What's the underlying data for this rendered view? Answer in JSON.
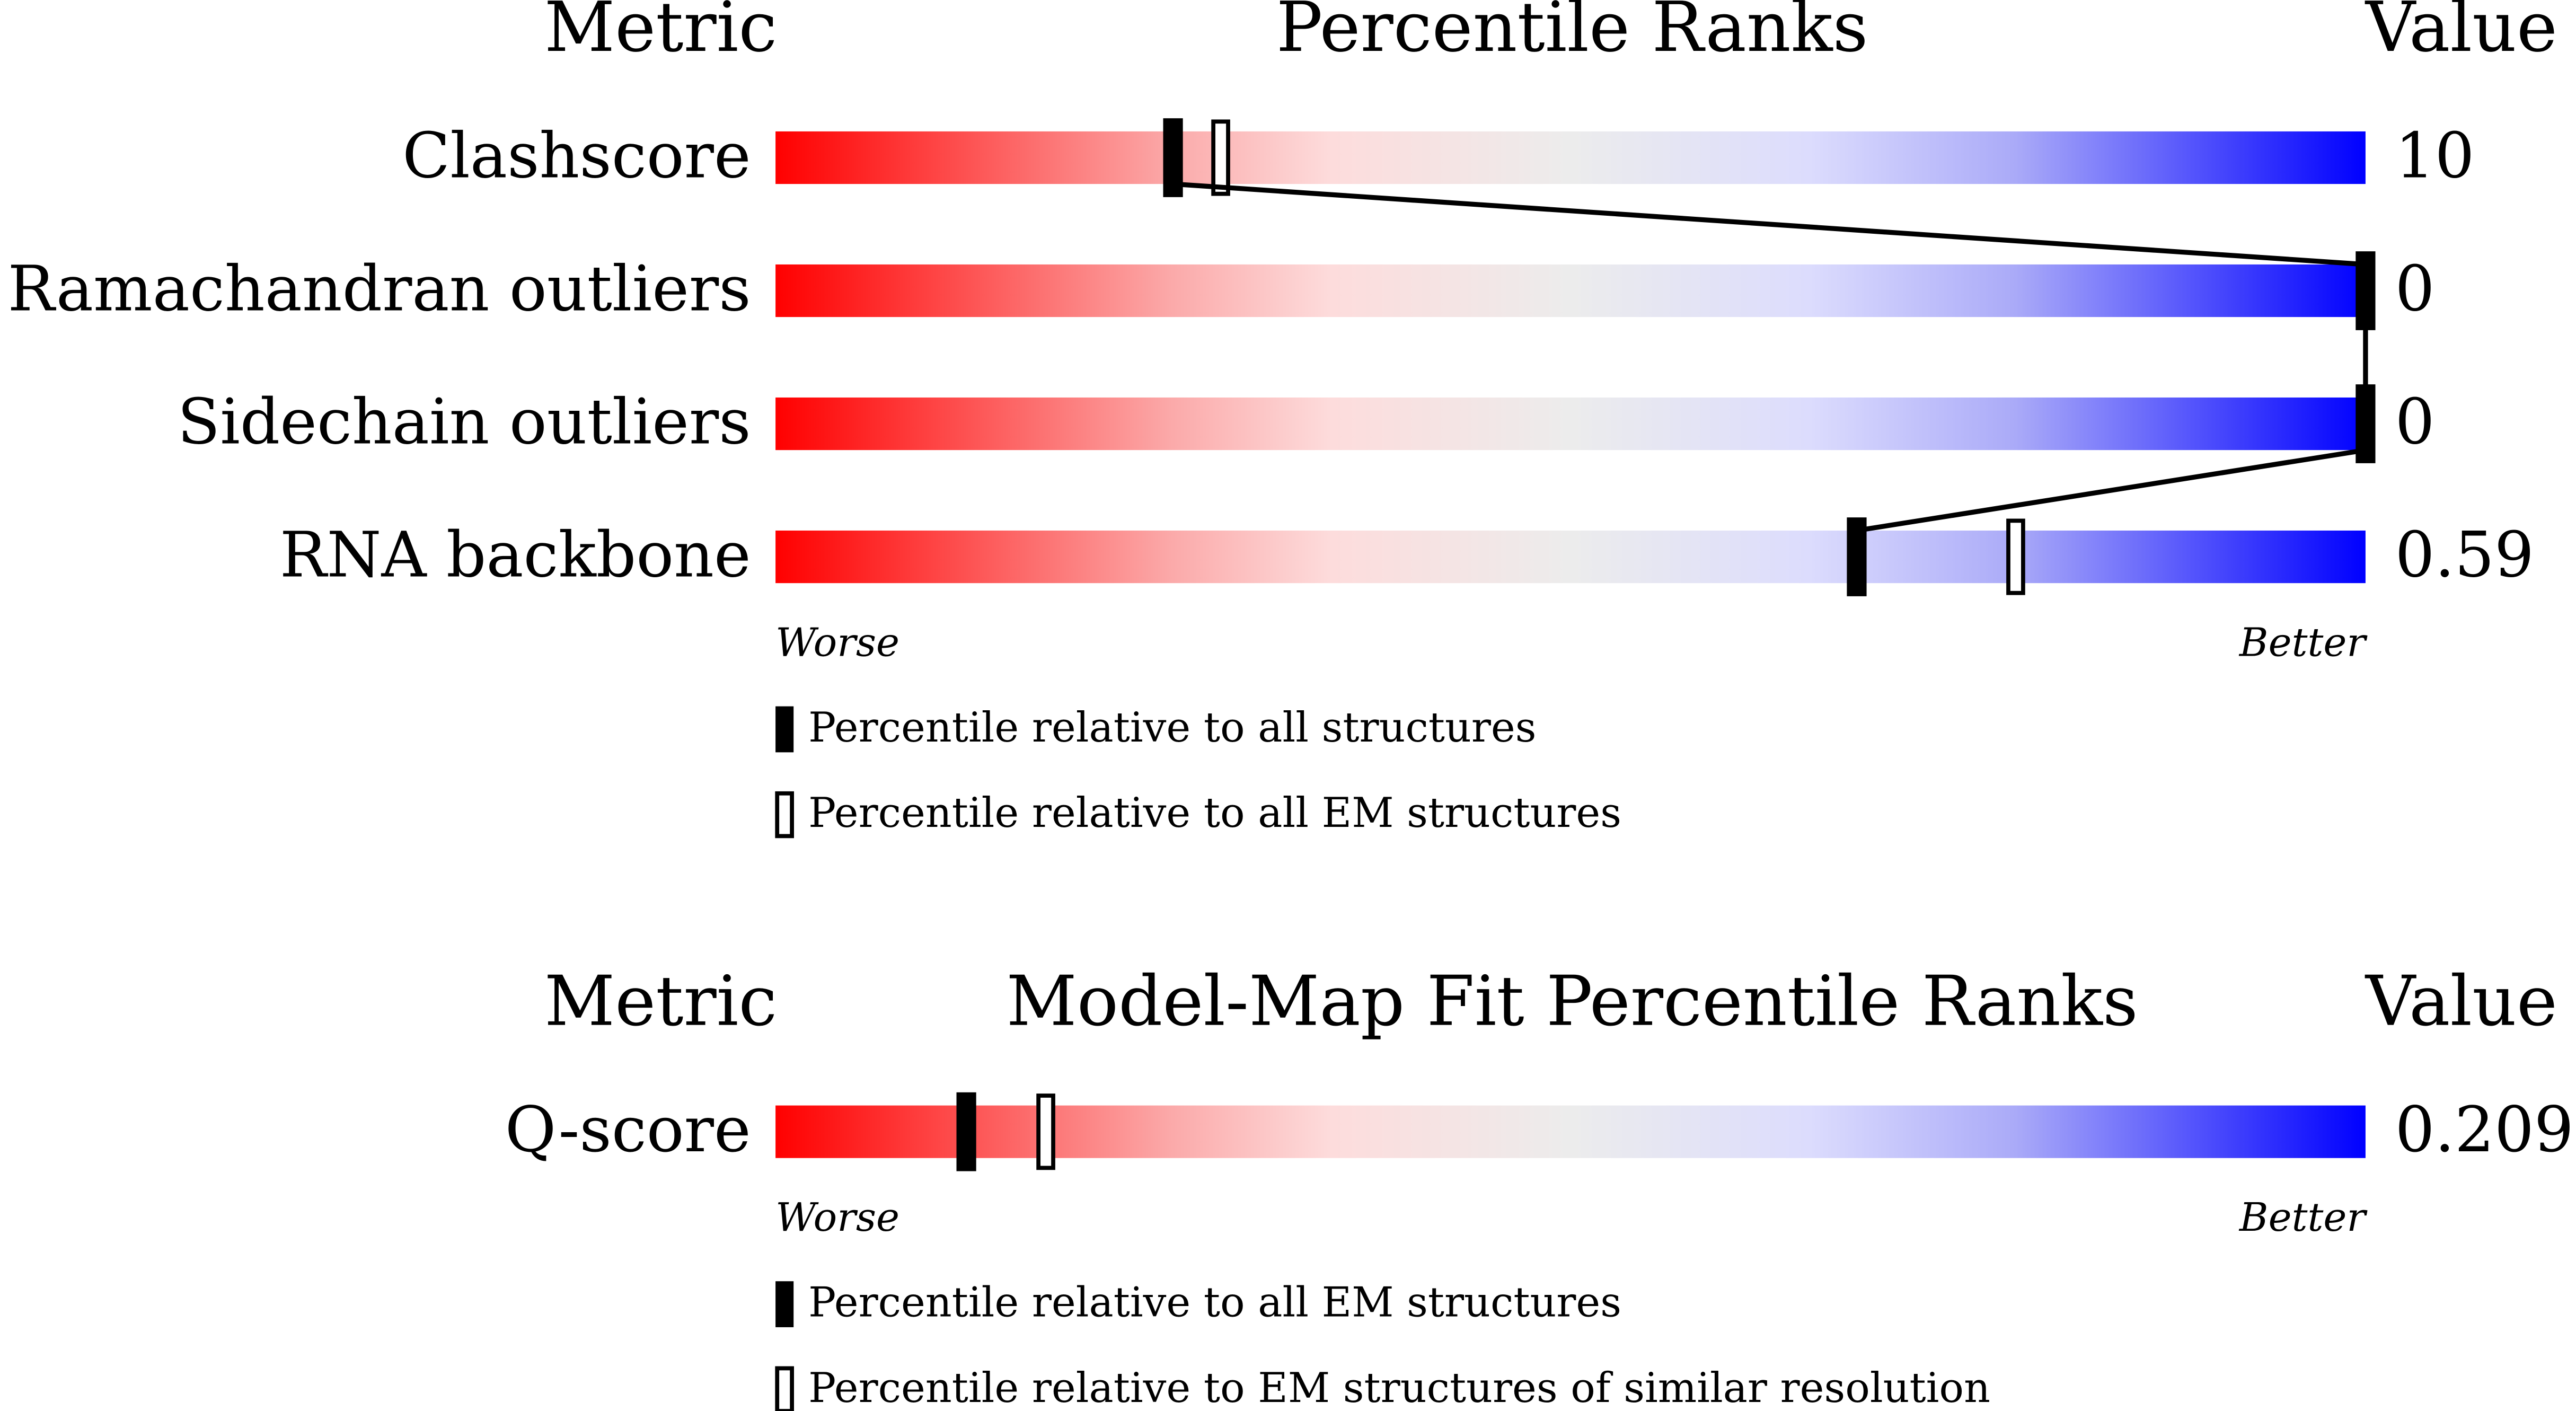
{
  "chart_data": [
    {
      "type": "percentile-slider",
      "metric_header": "Metric",
      "title": "Percentile Ranks",
      "value_header": "Value",
      "categories": [
        "Clashscore",
        "Ramachandran outliers",
        "Sidechain outliers",
        "RNA backbone"
      ],
      "values": [
        10,
        0,
        0,
        0.59
      ],
      "xlim": [
        0,
        100
      ],
      "worse_label": "Worse",
      "better_label": "Better",
      "series": [
        {
          "name": "Percentile relative to all structures",
          "color": "#000000",
          "style": "filled",
          "values": [
            25,
            100,
            100,
            68
          ]
        },
        {
          "name": "Percentile relative to all EM structures",
          "color": "#000000",
          "style": "open",
          "values": [
            28,
            100,
            100,
            78
          ]
        }
      ]
    },
    {
      "type": "percentile-slider",
      "metric_header": "Metric",
      "title": "Model-Map Fit Percentile Ranks",
      "value_header": "Value",
      "categories": [
        "Q-score"
      ],
      "values": [
        0.209
      ],
      "xlim": [
        0,
        100
      ],
      "worse_label": "Worse",
      "better_label": "Better",
      "series": [
        {
          "name": "Percentile relative to all EM structures",
          "color": "#000000",
          "style": "filled",
          "values": [
            12
          ]
        },
        {
          "name": "Percentile relative to EM structures of similar resolution",
          "color": "#000000",
          "style": "open",
          "values": [
            17
          ]
        }
      ]
    }
  ]
}
